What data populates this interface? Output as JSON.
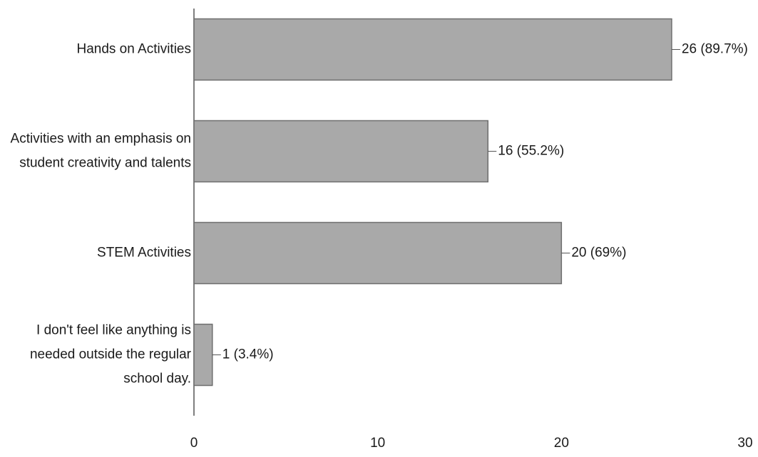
{
  "chart_data": {
    "type": "bar",
    "orientation": "horizontal",
    "categories": [
      [
        "Hands on Activities"
      ],
      [
        "Activities with an emphasis on",
        "student creativity and talents"
      ],
      [
        "STEM Activities"
      ],
      [
        "I don't feel like anything is",
        "needed outside the regular",
        "school day."
      ]
    ],
    "values": [
      26,
      16,
      20,
      1
    ],
    "data_labels": [
      "26 (89.7%)",
      "16 (55.2%)",
      "20 (69%)",
      "1 (3.4%)"
    ],
    "xlim": [
      0,
      30
    ],
    "x_ticks": [
      0,
      10,
      20,
      30
    ],
    "grid": false,
    "colors": {
      "bar": "#a9a9a9",
      "bar_stroke": "#6e6e6e",
      "axis": "#555555"
    }
  }
}
